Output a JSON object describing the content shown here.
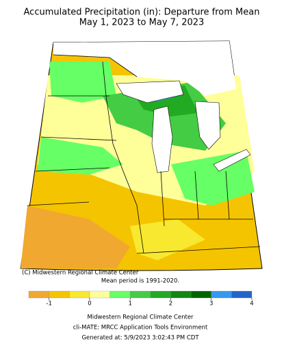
{
  "title": [
    "Accumulated Precipitation (in): Departure from Mean",
    "May 1, 2023 to May 7, 2023"
  ],
  "map": {
    "credit": "(C) Midwestern Regional Climate Center"
  },
  "note": "Mean period is 1991-2020.",
  "colorbar": {
    "bins": [
      -1.5,
      -1,
      -0.5,
      0,
      0.5,
      1,
      1.5,
      2,
      2.5,
      3,
      3.5,
      4
    ],
    "colors": [
      "#f0a830",
      "#f5c400",
      "#f8e830",
      "#ffff99",
      "#66ff66",
      "#44cc44",
      "#22aa22",
      "#118811",
      "#006600",
      "#3399ee",
      "#2266cc",
      "#99ccff"
    ],
    "ticks": [
      -1,
      0,
      1,
      2,
      3,
      4
    ]
  },
  "footer": [
    "Midwestern Regional Climate Center",
    "cli-MATE: MRCC Application Tools Environment",
    "Generated at: 5/9/2023 3:02:43 PM CDT"
  ]
}
